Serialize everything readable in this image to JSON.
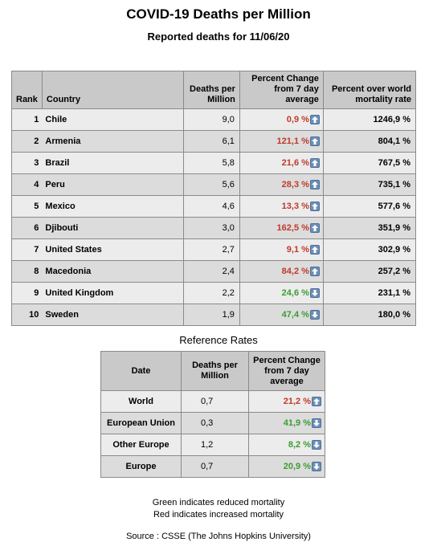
{
  "header": {
    "title": "COVID-19 Deaths per Million",
    "subtitle": "Reported deaths for 11/06/20"
  },
  "main_table": {
    "columns": [
      "Rank",
      "Country",
      "Deaths per Million",
      "Percent Change from 7 day average",
      "Percent  over world mortality rate"
    ],
    "rows": [
      {
        "rank": "1",
        "country": "Chile",
        "deaths": "9,0",
        "change": "0,9 %",
        "trend": "increased",
        "rate": "1246,9 %"
      },
      {
        "rank": "2",
        "country": "Armenia",
        "deaths": "6,1",
        "change": "121,1 %",
        "trend": "increased",
        "rate": "804,1 %"
      },
      {
        "rank": "3",
        "country": "Brazil",
        "deaths": "5,8",
        "change": "21,6 %",
        "trend": "increased",
        "rate": "767,5 %"
      },
      {
        "rank": "4",
        "country": "Peru",
        "deaths": "5,6",
        "change": "28,3 %",
        "trend": "increased",
        "rate": "735,1 %"
      },
      {
        "rank": "5",
        "country": "Mexico",
        "deaths": "4,6",
        "change": "13,3 %",
        "trend": "increased",
        "rate": "577,6 %"
      },
      {
        "rank": "6",
        "country": "Djibouti",
        "deaths": "3,0",
        "change": "162,5 %",
        "trend": "increased",
        "rate": "351,9 %"
      },
      {
        "rank": "7",
        "country": "United States",
        "deaths": "2,7",
        "change": "9,1 %",
        "trend": "increased",
        "rate": "302,9 %"
      },
      {
        "rank": "8",
        "country": "Macedonia",
        "deaths": "2,4",
        "change": "84,2 %",
        "trend": "increased",
        "rate": "257,2 %"
      },
      {
        "rank": "9",
        "country": "United Kingdom",
        "deaths": "2,2",
        "change": "24,6 %",
        "trend": "reduced",
        "rate": "231,1 %"
      },
      {
        "rank": "10",
        "country": "Sweden",
        "deaths": "1,9",
        "change": "47,4 %",
        "trend": "reduced",
        "rate": "180,0 %"
      }
    ]
  },
  "reference": {
    "title": "Reference Rates",
    "columns": [
      "Date",
      "Deaths per Million",
      "Percent Change from 7 day average"
    ],
    "rows": [
      {
        "label": "World",
        "deaths": "0,7",
        "change": "21,2 %",
        "trend": "increased"
      },
      {
        "label": "European Union",
        "deaths": "0,3",
        "change": "41,9 %",
        "trend": "reduced"
      },
      {
        "label": "Other Europe",
        "deaths": "1,2",
        "change": "8,2 %",
        "trend": "reduced"
      },
      {
        "label": "Europe",
        "deaths": "0,7",
        "change": "20,9 %",
        "trend": "reduced"
      }
    ]
  },
  "notes": {
    "green_note": "Green indicates reduced mortality",
    "red_note": "Red indicates increased mortality",
    "source": "Source : CSSE (The Johns Hopkins University)"
  },
  "colors": {
    "increased": "#c0392b",
    "reduced": "#3a9d2f",
    "header_bg": "#c9c9c9",
    "row_bg": "#ececec",
    "row_alt_bg": "#dcdcdc",
    "arrow_bg": "#6c8fb8"
  },
  "icons": {
    "increased": "arrow-up-icon",
    "reduced": "arrow-down-icon"
  }
}
